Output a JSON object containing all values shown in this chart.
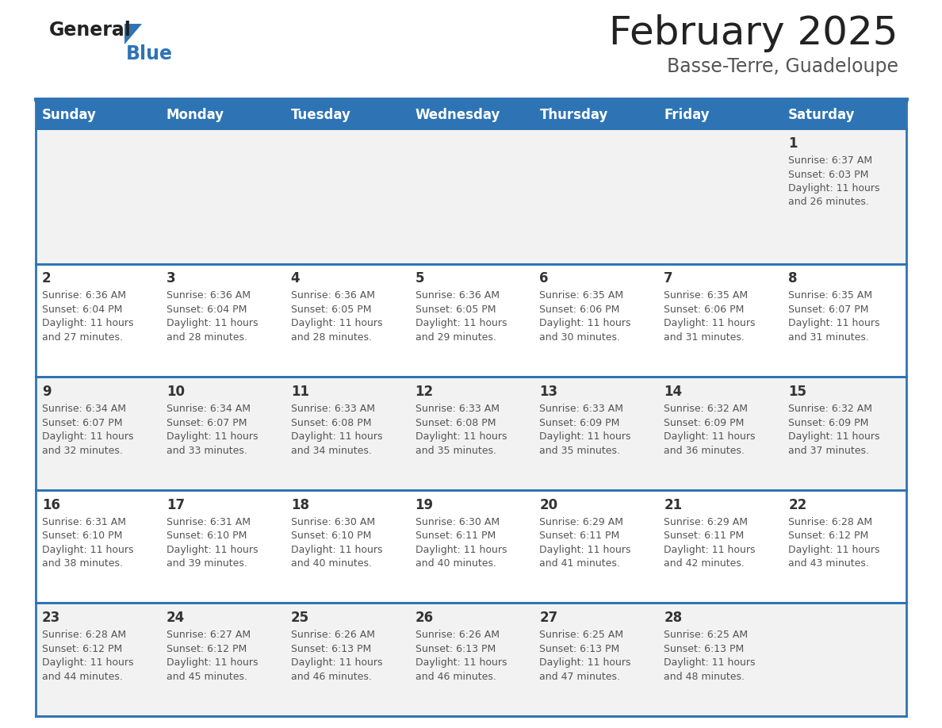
{
  "title": "February 2025",
  "subtitle": "Basse-Terre, Guadeloupe",
  "header_bg": "#2E74B5",
  "header_text_color": "#FFFFFF",
  "row_bg_even": "#F2F2F2",
  "row_bg_odd": "#FFFFFF",
  "day_names": [
    "Sunday",
    "Monday",
    "Tuesday",
    "Wednesday",
    "Thursday",
    "Friday",
    "Saturday"
  ],
  "title_color": "#222222",
  "subtitle_color": "#555555",
  "separator_color": "#2E74B5",
  "date_color": "#333333",
  "info_color": "#555555",
  "logo_general_color": "#222222",
  "logo_blue_color": "#2E74B5",
  "logo_triangle_color": "#2E74B5",
  "days": [
    {
      "day": 1,
      "col": 6,
      "row": 0,
      "sunrise": "6:37 AM",
      "sunset": "6:03 PM",
      "daylight": "11 hours and 26 minutes"
    },
    {
      "day": 2,
      "col": 0,
      "row": 1,
      "sunrise": "6:36 AM",
      "sunset": "6:04 PM",
      "daylight": "11 hours and 27 minutes"
    },
    {
      "day": 3,
      "col": 1,
      "row": 1,
      "sunrise": "6:36 AM",
      "sunset": "6:04 PM",
      "daylight": "11 hours and 28 minutes"
    },
    {
      "day": 4,
      "col": 2,
      "row": 1,
      "sunrise": "6:36 AM",
      "sunset": "6:05 PM",
      "daylight": "11 hours and 28 minutes"
    },
    {
      "day": 5,
      "col": 3,
      "row": 1,
      "sunrise": "6:36 AM",
      "sunset": "6:05 PM",
      "daylight": "11 hours and 29 minutes"
    },
    {
      "day": 6,
      "col": 4,
      "row": 1,
      "sunrise": "6:35 AM",
      "sunset": "6:06 PM",
      "daylight": "11 hours and 30 minutes"
    },
    {
      "day": 7,
      "col": 5,
      "row": 1,
      "sunrise": "6:35 AM",
      "sunset": "6:06 PM",
      "daylight": "11 hours and 31 minutes"
    },
    {
      "day": 8,
      "col": 6,
      "row": 1,
      "sunrise": "6:35 AM",
      "sunset": "6:07 PM",
      "daylight": "11 hours and 31 minutes"
    },
    {
      "day": 9,
      "col": 0,
      "row": 2,
      "sunrise": "6:34 AM",
      "sunset": "6:07 PM",
      "daylight": "11 hours and 32 minutes"
    },
    {
      "day": 10,
      "col": 1,
      "row": 2,
      "sunrise": "6:34 AM",
      "sunset": "6:07 PM",
      "daylight": "11 hours and 33 minutes"
    },
    {
      "day": 11,
      "col": 2,
      "row": 2,
      "sunrise": "6:33 AM",
      "sunset": "6:08 PM",
      "daylight": "11 hours and 34 minutes"
    },
    {
      "day": 12,
      "col": 3,
      "row": 2,
      "sunrise": "6:33 AM",
      "sunset": "6:08 PM",
      "daylight": "11 hours and 35 minutes"
    },
    {
      "day": 13,
      "col": 4,
      "row": 2,
      "sunrise": "6:33 AM",
      "sunset": "6:09 PM",
      "daylight": "11 hours and 35 minutes"
    },
    {
      "day": 14,
      "col": 5,
      "row": 2,
      "sunrise": "6:32 AM",
      "sunset": "6:09 PM",
      "daylight": "11 hours and 36 minutes"
    },
    {
      "day": 15,
      "col": 6,
      "row": 2,
      "sunrise": "6:32 AM",
      "sunset": "6:09 PM",
      "daylight": "11 hours and 37 minutes"
    },
    {
      "day": 16,
      "col": 0,
      "row": 3,
      "sunrise": "6:31 AM",
      "sunset": "6:10 PM",
      "daylight": "11 hours and 38 minutes"
    },
    {
      "day": 17,
      "col": 1,
      "row": 3,
      "sunrise": "6:31 AM",
      "sunset": "6:10 PM",
      "daylight": "11 hours and 39 minutes"
    },
    {
      "day": 18,
      "col": 2,
      "row": 3,
      "sunrise": "6:30 AM",
      "sunset": "6:10 PM",
      "daylight": "11 hours and 40 minutes"
    },
    {
      "day": 19,
      "col": 3,
      "row": 3,
      "sunrise": "6:30 AM",
      "sunset": "6:11 PM",
      "daylight": "11 hours and 40 minutes"
    },
    {
      "day": 20,
      "col": 4,
      "row": 3,
      "sunrise": "6:29 AM",
      "sunset": "6:11 PM",
      "daylight": "11 hours and 41 minutes"
    },
    {
      "day": 21,
      "col": 5,
      "row": 3,
      "sunrise": "6:29 AM",
      "sunset": "6:11 PM",
      "daylight": "11 hours and 42 minutes"
    },
    {
      "day": 22,
      "col": 6,
      "row": 3,
      "sunrise": "6:28 AM",
      "sunset": "6:12 PM",
      "daylight": "11 hours and 43 minutes"
    },
    {
      "day": 23,
      "col": 0,
      "row": 4,
      "sunrise": "6:28 AM",
      "sunset": "6:12 PM",
      "daylight": "11 hours and 44 minutes"
    },
    {
      "day": 24,
      "col": 1,
      "row": 4,
      "sunrise": "6:27 AM",
      "sunset": "6:12 PM",
      "daylight": "11 hours and 45 minutes"
    },
    {
      "day": 25,
      "col": 2,
      "row": 4,
      "sunrise": "6:26 AM",
      "sunset": "6:13 PM",
      "daylight": "11 hours and 46 minutes"
    },
    {
      "day": 26,
      "col": 3,
      "row": 4,
      "sunrise": "6:26 AM",
      "sunset": "6:13 PM",
      "daylight": "11 hours and 46 minutes"
    },
    {
      "day": 27,
      "col": 4,
      "row": 4,
      "sunrise": "6:25 AM",
      "sunset": "6:13 PM",
      "daylight": "11 hours and 47 minutes"
    },
    {
      "day": 28,
      "col": 5,
      "row": 4,
      "sunrise": "6:25 AM",
      "sunset": "6:13 PM",
      "daylight": "11 hours and 48 minutes"
    }
  ]
}
